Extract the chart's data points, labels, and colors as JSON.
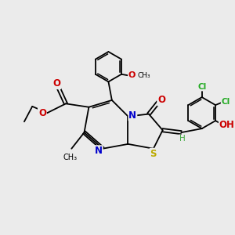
{
  "bg_color": "#ebebeb",
  "bond_color": "#000000",
  "figsize": [
    3.0,
    3.0
  ],
  "dpi": 100,
  "atoms": {
    "S": {
      "color": "#bbaa00",
      "fontsize": 8.5,
      "fontweight": "bold"
    },
    "N": {
      "color": "#0000cc",
      "fontsize": 8.5,
      "fontweight": "bold"
    },
    "O": {
      "color": "#cc0000",
      "fontsize": 8.5,
      "fontweight": "bold"
    },
    "Cl": {
      "color": "#22aa22",
      "fontsize": 7.5,
      "fontweight": "bold"
    },
    "H": {
      "color": "#44aa44",
      "fontsize": 7.5,
      "fontweight": "normal"
    },
    "OH": {
      "color": "#cc0000",
      "fontsize": 7.5,
      "fontweight": "bold"
    }
  }
}
